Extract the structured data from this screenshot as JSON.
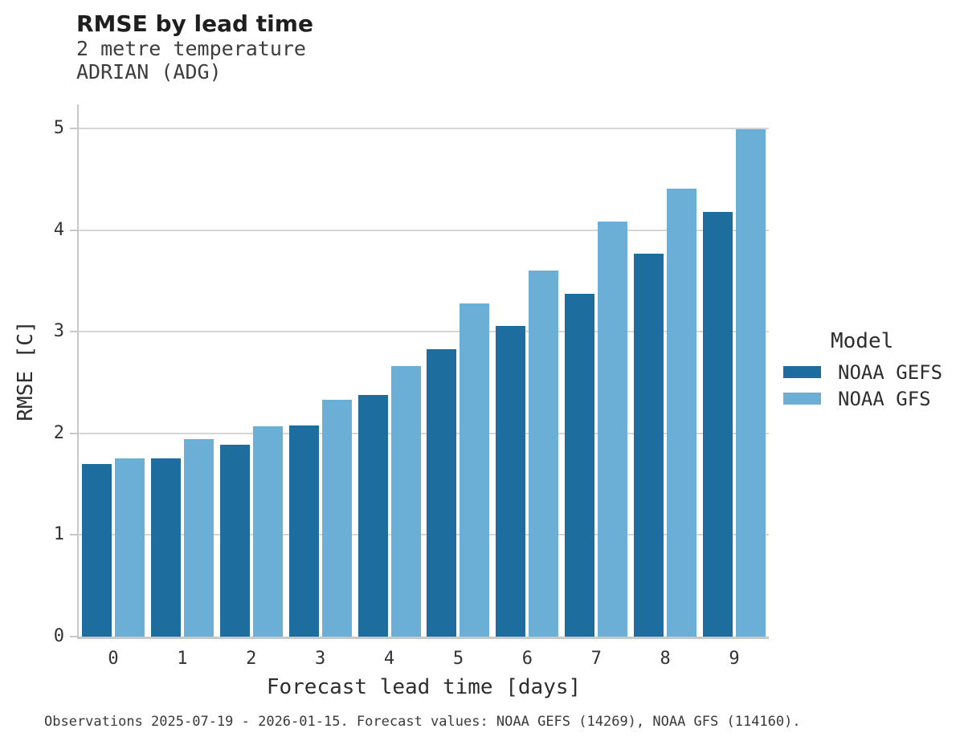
{
  "header": {
    "title": "RMSE by lead time",
    "subtitle1": "2 metre temperature",
    "subtitle2": "ADRIAN (ADG)"
  },
  "footer": {
    "note": "Observations 2025-07-19 - 2026-01-15. Forecast values: NOAA GEFS (14269), NOAA GFS (114160)."
  },
  "legend": {
    "title": "Model",
    "items": [
      {
        "label": "NOAA GEFS",
        "color": "#1d6d9e"
      },
      {
        "label": "NOAA GFS",
        "color": "#6cafd6"
      }
    ]
  },
  "colors": {
    "series_dark": "#1d6d9e",
    "series_light": "#6cafd6",
    "grid": "#d6d6d6",
    "spine": "#c8c8c8",
    "text": "#2e2e2e"
  },
  "chart_data": {
    "type": "bar",
    "title": "RMSE by lead time",
    "subtitle": [
      "2 metre temperature",
      "ADRIAN (ADG)"
    ],
    "categories": [
      "0",
      "1",
      "2",
      "3",
      "4",
      "5",
      "6",
      "7",
      "8",
      "9"
    ],
    "series": [
      {
        "name": "NOAA GEFS",
        "color": "#1d6d9e",
        "values": [
          1.7,
          1.75,
          1.89,
          2.08,
          2.38,
          2.83,
          3.06,
          3.37,
          3.77,
          4.18
        ]
      },
      {
        "name": "NOAA GFS",
        "color": "#6cafd6",
        "values": [
          1.75,
          1.94,
          2.07,
          2.33,
          2.66,
          3.28,
          3.6,
          4.08,
          4.41,
          4.99
        ]
      }
    ],
    "xlabel": "Forecast lead time [days]",
    "ylabel": "RMSE [C]",
    "ylim": [
      0,
      5
    ],
    "yticks": [
      0,
      1,
      2,
      3,
      4,
      5
    ],
    "grid": true,
    "legend_title": "Model",
    "legend_position": "right"
  }
}
